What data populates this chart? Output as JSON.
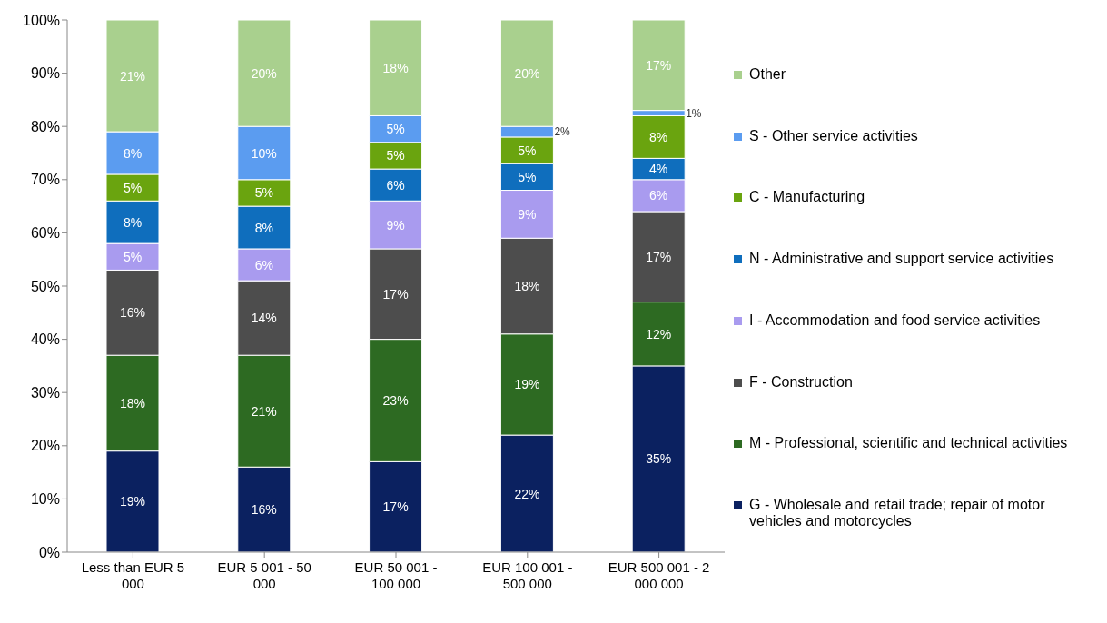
{
  "chart_data": {
    "type": "bar",
    "stacked": true,
    "categories": [
      "Less than EUR 5 000",
      "EUR 5 001 - 50 000",
      "EUR 50 001 - 100 000",
      "EUR 100 001 - 500 000",
      "EUR 500 001 - 2 000 000"
    ],
    "ylim": [
      0,
      100
    ],
    "yticks": [
      {
        "value": 0,
        "label": "0%"
      },
      {
        "value": 10,
        "label": "10%"
      },
      {
        "value": 20,
        "label": "20%"
      },
      {
        "value": 30,
        "label": "30%"
      },
      {
        "value": 40,
        "label": "40%"
      },
      {
        "value": 50,
        "label": "50%"
      },
      {
        "value": 60,
        "label": "60%"
      },
      {
        "value": 70,
        "label": "70%"
      },
      {
        "value": 80,
        "label": "80%"
      },
      {
        "value": 90,
        "label": "90%"
      },
      {
        "value": 100,
        "label": "100%"
      }
    ],
    "legend": "right",
    "series": [
      {
        "name": "G - Wholesale and retail trade; repair of motor vehicles and motorcycles",
        "color": "#0b2160",
        "values": [
          19,
          16,
          17,
          22,
          35
        ],
        "value_labels": [
          "19%",
          "16%",
          "17%",
          "22%",
          "35%"
        ]
      },
      {
        "name": "M - Professional, scientific and technical activities",
        "color": "#2d6a22",
        "values": [
          18,
          21,
          23,
          19,
          12
        ],
        "value_labels": [
          "18%",
          "21%",
          "23%",
          "19%",
          "12%"
        ]
      },
      {
        "name": "F - Construction",
        "color": "#4d4d4d",
        "values": [
          16,
          14,
          17,
          18,
          17
        ],
        "value_labels": [
          "16%",
          "14%",
          "17%",
          "18%",
          "17%"
        ]
      },
      {
        "name": "I - Accommodation and food service activities",
        "color": "#a99bef",
        "values": [
          5,
          6,
          9,
          9,
          6
        ],
        "value_labels": [
          "5%",
          "6%",
          "9%",
          "9%",
          "6%"
        ]
      },
      {
        "name": "N - Administrative and support service activities",
        "color": "#0f6ebd",
        "values": [
          8,
          8,
          6,
          5,
          4
        ],
        "value_labels": [
          "8%",
          "8%",
          "6%",
          "5%",
          "4%"
        ]
      },
      {
        "name": "C - Manufacturing",
        "color": "#6aa40f",
        "values": [
          5,
          5,
          5,
          5,
          8
        ],
        "value_labels": [
          "5%",
          "5%",
          "5%",
          "5%",
          "8%"
        ]
      },
      {
        "name": "S - Other service activities",
        "color": "#5b9cf0",
        "values": [
          8,
          10,
          5,
          2,
          1
        ],
        "value_labels": [
          "8%",
          "10%",
          "5%",
          "2%",
          "1%"
        ]
      },
      {
        "name": "Other",
        "color": "#a9d08e",
        "values": [
          21,
          20,
          18,
          20,
          17
        ],
        "value_labels": [
          "21%",
          "20%",
          "18%",
          "20%",
          "17%"
        ]
      }
    ]
  }
}
